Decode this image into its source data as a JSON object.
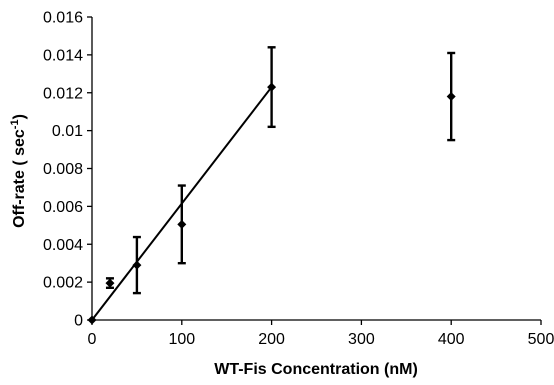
{
  "chart_data": {
    "type": "scatter",
    "xlabel": "WT-Fis Concentration (nM)",
    "ylabel_main": "Off-rate ( sec",
    "ylabel_sup": "-1",
    "ylabel_close": ")",
    "xlim": [
      0,
      500
    ],
    "ylim": [
      0,
      0.016
    ],
    "x_ticks": [
      {
        "value": 0,
        "label": "0"
      },
      {
        "value": 100,
        "label": "100"
      },
      {
        "value": 200,
        "label": "200"
      },
      {
        "value": 300,
        "label": "300"
      },
      {
        "value": 400,
        "label": "400"
      },
      {
        "value": 500,
        "label": "500"
      }
    ],
    "y_ticks": [
      {
        "value": 0,
        "label": "0"
      },
      {
        "value": 0.002,
        "label": "0.002"
      },
      {
        "value": 0.004,
        "label": "0.004"
      },
      {
        "value": 0.006,
        "label": "0.006"
      },
      {
        "value": 0.008,
        "label": "0.008"
      },
      {
        "value": 0.01,
        "label": "0.01"
      },
      {
        "value": 0.012,
        "label": "0.012"
      },
      {
        "value": 0.014,
        "label": "0.014"
      },
      {
        "value": 0.016,
        "label": "0.016"
      }
    ],
    "grid": false,
    "marker": "diamond",
    "series": [
      {
        "points": [
          {
            "x": 0,
            "y": 0,
            "err": 0
          },
          {
            "x": 20,
            "y": 0.00195,
            "err": 0.00025
          },
          {
            "x": 50,
            "y": 0.0029,
            "err": 0.00148
          },
          {
            "x": 100,
            "y": 0.00505,
            "err": 0.00205
          },
          {
            "x": 200,
            "y": 0.0123,
            "err": 0.0021
          },
          {
            "x": 400,
            "y": 0.0118,
            "err": 0.0023
          }
        ]
      }
    ],
    "trendline": {
      "x_start": 0,
      "y_start": 0,
      "x_end": 200,
      "y_end": 0.0123
    }
  }
}
